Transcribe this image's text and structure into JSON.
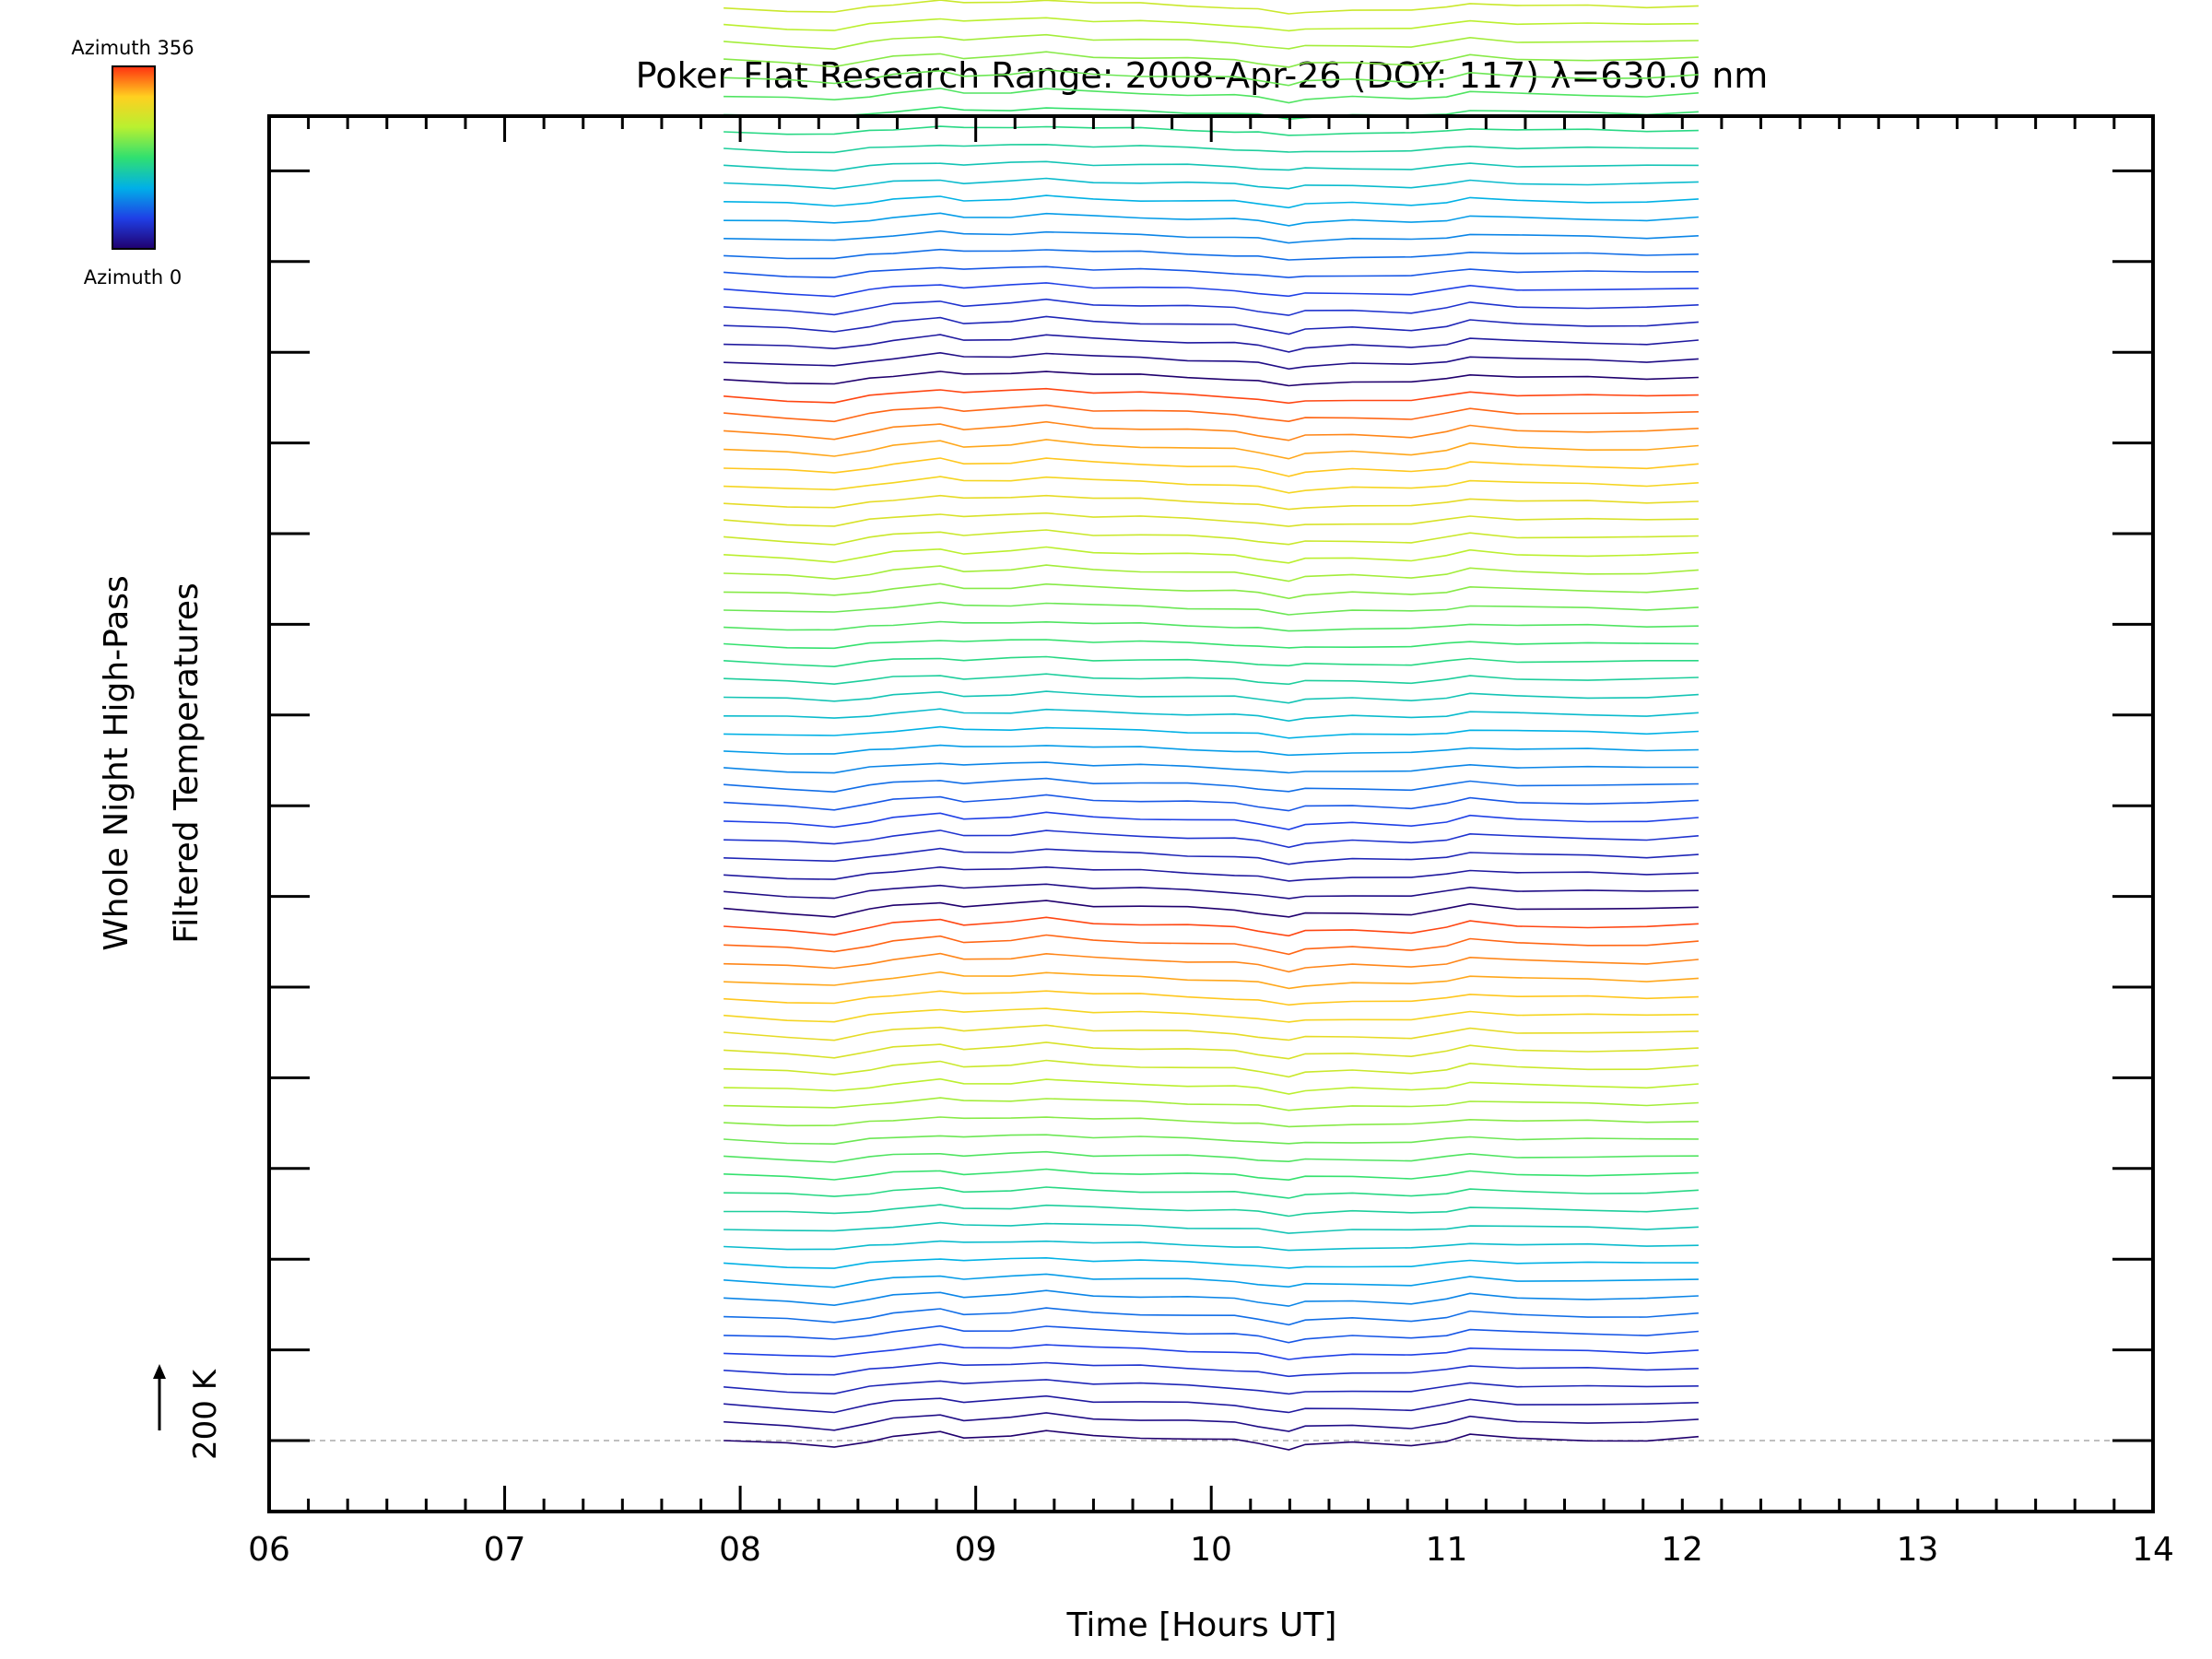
{
  "chart_data": {
    "type": "line",
    "title": "Poker Flat Research Range: 2008-Apr-26 (DOY: 117) λ=630.0 nm",
    "xlabel": "Time [Hours UT]",
    "ylabel_line1": "Whole Night High-Pass",
    "ylabel_line2": "Filtered Temperatures",
    "xlim": [
      6,
      14
    ],
    "x_ticks": [
      "06",
      "07",
      "08",
      "09",
      "10",
      "11",
      "12",
      "13",
      "14"
    ],
    "x_minor_step": 0.1667,
    "y_major_ticks": 15,
    "scale_label": "200 K",
    "baseline_style": "dashed gray",
    "colorbar": {
      "top_label": "Azimuth 356",
      "bottom_label": "Azimuth 0",
      "colormap": "rainbow",
      "colors": [
        "#20006e",
        "#1f3fe6",
        "#00b0e8",
        "#30e070",
        "#b8f030",
        "#ffd020",
        "#ff3010"
      ]
    },
    "series_count": 138,
    "series_offset_K": 40,
    "x_start_hours": 7.93,
    "x_end_hours": 12.07,
    "azimuth_range": [
      0,
      356
    ],
    "trace_x_hours": [
      7.93,
      8.2,
      8.4,
      8.55,
      8.65,
      8.85,
      8.95,
      9.15,
      9.3,
      9.5,
      9.7,
      9.9,
      10.1,
      10.2,
      10.33,
      10.4,
      10.6,
      10.85,
      11.0,
      11.1,
      11.3,
      11.6,
      11.85,
      12.07
    ],
    "trace_shape_K": [
      0,
      -8,
      -14,
      0,
      8,
      18,
      8,
      12,
      20,
      10,
      8,
      4,
      0,
      -6,
      -18,
      -10,
      -6,
      -10,
      0,
      12,
      4,
      2,
      0,
      6
    ]
  }
}
